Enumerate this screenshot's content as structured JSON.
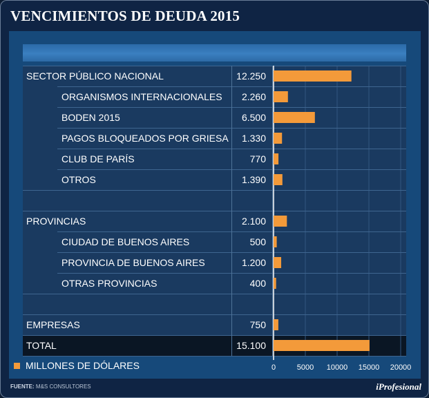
{
  "title": "VENCIMIENTOS DE DEUDA 2015",
  "source_label": "FUENTE:",
  "source_text": "M&S CONSULTORES",
  "brand": "iProfesional",
  "legend": "MILLONES DE DÓLARES",
  "colors": {
    "bar": "#f39a3a",
    "background": "#0f2444",
    "total_row": "#0a1624"
  },
  "chart_data": {
    "type": "bar",
    "orientation": "horizontal",
    "title": "VENCIMIENTOS DE DEUDA 2015",
    "unit": "MILLONES DE DÓLARES",
    "xlim": [
      0,
      20000
    ],
    "xticks": [
      0,
      5000,
      10000,
      15000,
      20000
    ],
    "rows": [
      {
        "label": "SECTOR PÚBLICO NACIONAL",
        "value": 12250,
        "display": "12.250",
        "level": 0
      },
      {
        "label": "ORGANISMOS INTERNACIONALES",
        "value": 2260,
        "display": "2.260",
        "level": 1
      },
      {
        "label": "BODEN 2015",
        "value": 6500,
        "display": "6.500",
        "level": 1
      },
      {
        "label": "PAGOS BLOQUEADOS POR GRIESA",
        "value": 1330,
        "display": "1.330",
        "level": 1
      },
      {
        "label": "CLUB DE PARÍS",
        "value": 770,
        "display": "770",
        "level": 1
      },
      {
        "label": "OTROS",
        "value": 1390,
        "display": "1.390",
        "level": 1
      },
      {
        "label": "",
        "value": null,
        "display": "",
        "level": 0,
        "spacer": true
      },
      {
        "label": "PROVINCIAS",
        "value": 2100,
        "display": "2.100",
        "level": 0
      },
      {
        "label": "CIUDAD DE BUENOS AIRES",
        "value": 500,
        "display": "500",
        "level": 1
      },
      {
        "label": "PROVINCIA DE BUENOS AIRES",
        "value": 1200,
        "display": "1.200",
        "level": 1
      },
      {
        "label": "OTRAS PROVINCIAS",
        "value": 400,
        "display": "400",
        "level": 1
      },
      {
        "label": "",
        "value": null,
        "display": "",
        "level": 0,
        "spacer": true
      },
      {
        "label": "EMPRESAS",
        "value": 750,
        "display": "750",
        "level": 0
      },
      {
        "label": "TOTAL",
        "value": 15100,
        "display": "15.100",
        "level": 0,
        "total": true
      }
    ]
  }
}
